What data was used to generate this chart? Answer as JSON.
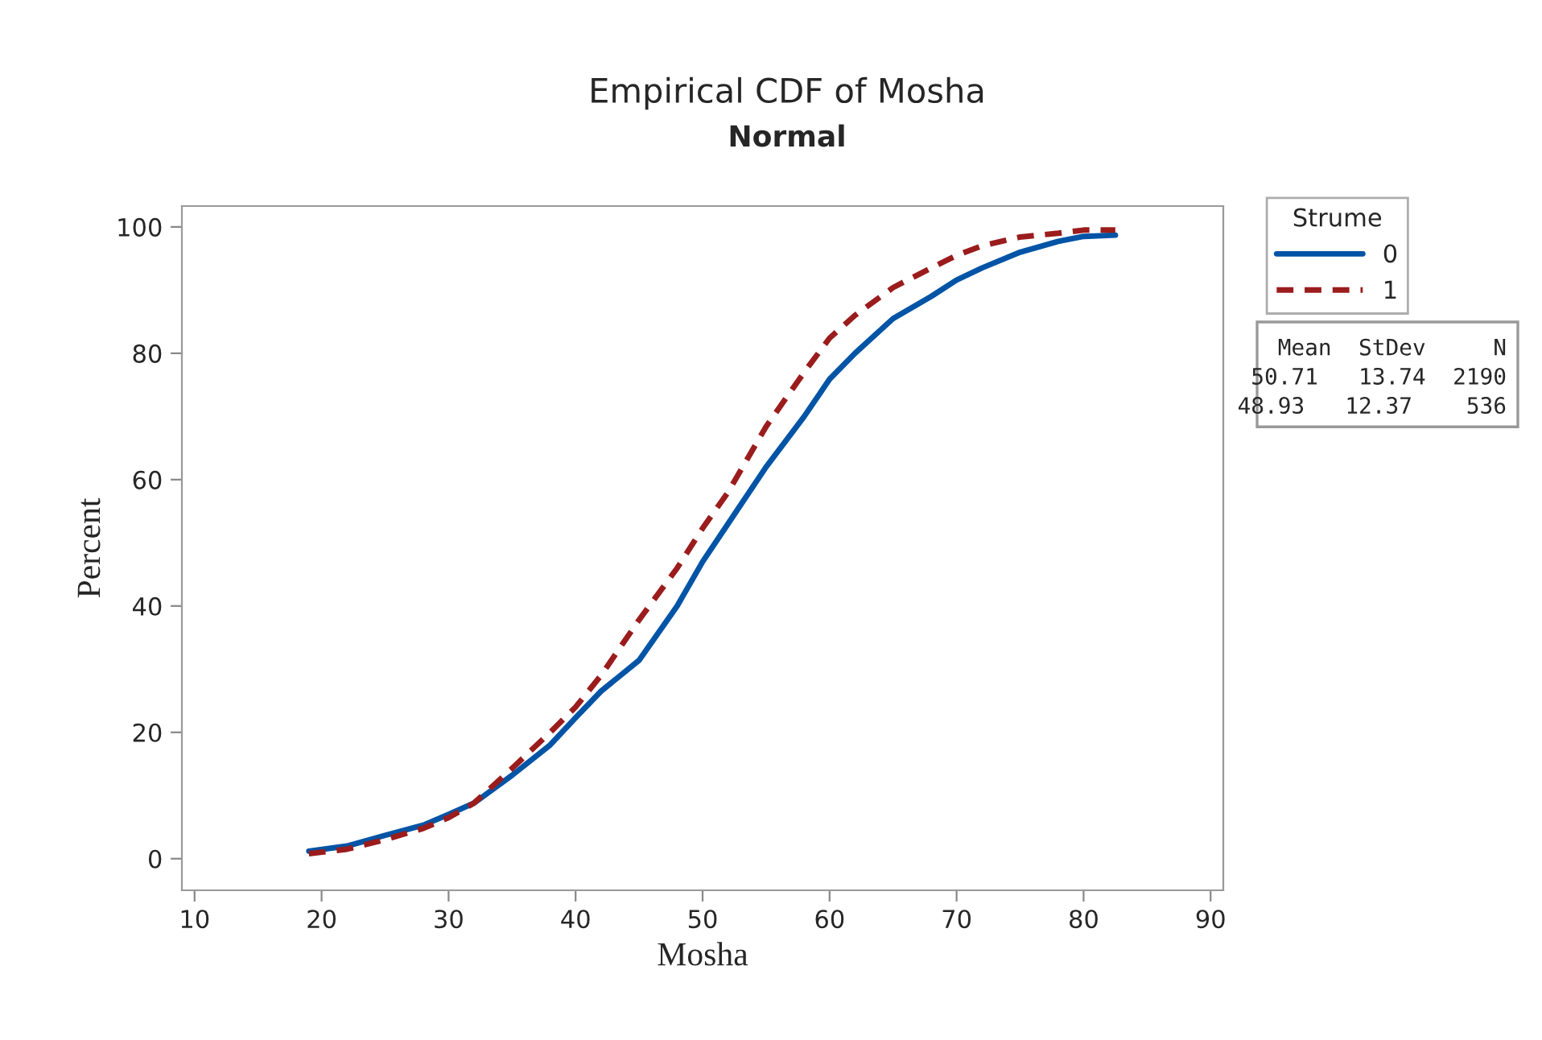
{
  "chart_data": {
    "type": "line",
    "title": "Empirical CDF of Mosha",
    "subtitle": "Normal",
    "xlabel": "Mosha",
    "ylabel": "Percent",
    "legend_title": "Strume",
    "legend": "top right",
    "xlim": [
      9,
      91
    ],
    "xticks": [
      10,
      20,
      30,
      40,
      50,
      60,
      70,
      80,
      90
    ],
    "ylim": [
      -5,
      103.3
    ],
    "yticks": [
      0,
      20,
      40,
      60,
      80,
      100
    ],
    "grid": false,
    "series": [
      {
        "name": "0",
        "color": "#0054a6",
        "line_style": "solid",
        "x": [
          19,
          22,
          25,
          28,
          30,
          32,
          35,
          38,
          40,
          42,
          45,
          48,
          50,
          52,
          55,
          58,
          60,
          62,
          65,
          68,
          70,
          72,
          75,
          78,
          80,
          82.5
        ],
        "values": [
          1.2,
          2,
          3.7,
          5.3,
          7,
          8.8,
          13.2,
          18,
          22.3,
          26.5,
          31.4,
          40,
          47,
          53,
          62,
          70,
          75.9,
          80,
          85.5,
          89,
          91.6,
          93.5,
          96,
          97.7,
          98.5,
          98.7
        ]
      },
      {
        "name": "1",
        "color": "#9b1c1c",
        "line_style": "dashed",
        "x": [
          19,
          22,
          25,
          28,
          30,
          32,
          35,
          38,
          40,
          42,
          45,
          48,
          50,
          52,
          55,
          58,
          60,
          62,
          65,
          68,
          70,
          72,
          75,
          78,
          80,
          82.5
        ],
        "values": [
          0.8,
          1.5,
          3,
          4.8,
          6.5,
          8.8,
          14.3,
          20,
          24,
          29,
          37.8,
          46,
          52.3,
          58,
          68.4,
          77,
          82.4,
          86,
          90.4,
          93.5,
          95.5,
          97,
          98.4,
          99,
          99.5,
          99.5
        ]
      }
    ],
    "annotations": [
      "Mean  StDev     N",
      "50.71   13.74  2190",
      "48.93   12.37    536"
    ]
  }
}
